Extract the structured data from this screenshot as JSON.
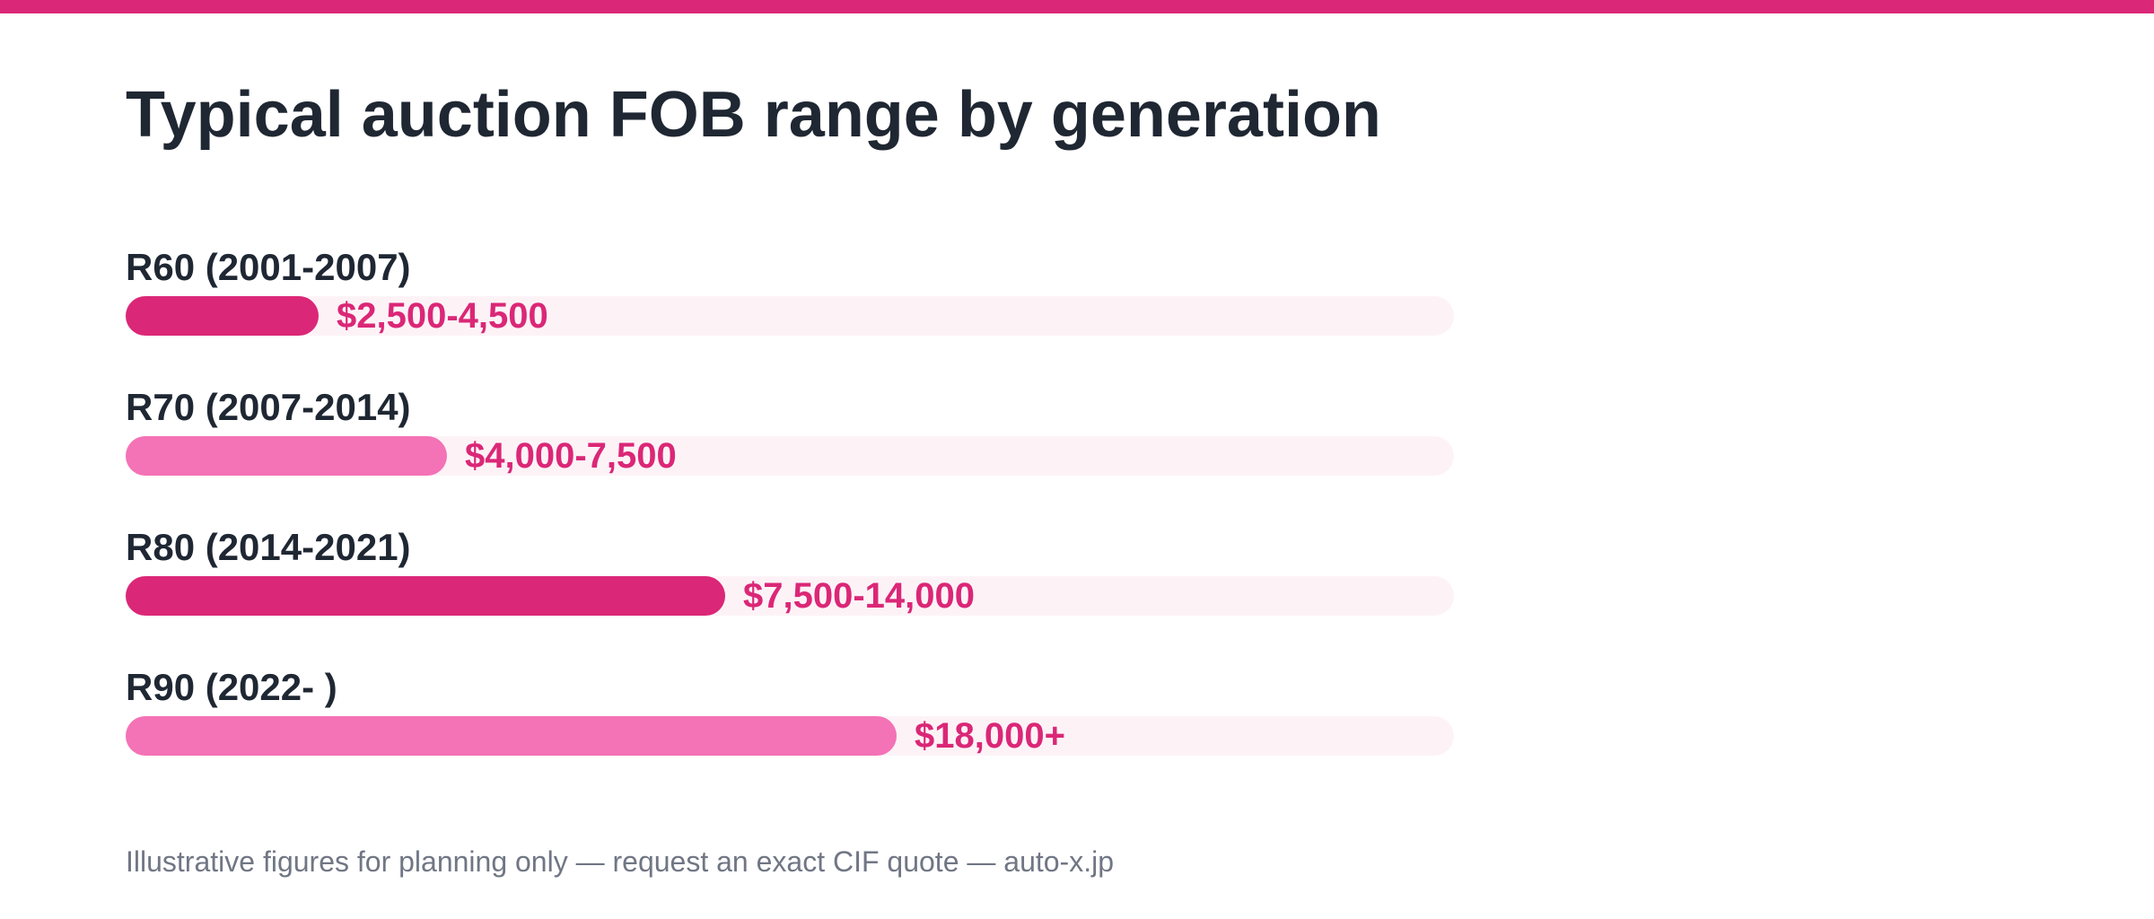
{
  "theme": {
    "accent": "#db2777",
    "accent_light": "#f472b6",
    "track": "#fdf3f7",
    "text": "#1f2733",
    "muted": "#707684"
  },
  "chart_data": {
    "type": "bar",
    "orientation": "horizontal",
    "title": "Typical auction FOB range by generation",
    "categories": [
      "R60 (2001-2007)",
      "R70 (2007-2014)",
      "R80 (2014-2021)",
      "R90 (2022- )"
    ],
    "values": [
      4500,
      7500,
      14000,
      18000
    ],
    "value_labels": [
      "$2,500-4,500",
      "$4,000-7,500",
      "$7,500-14,000",
      "$18,000+"
    ],
    "bar_colors": [
      "#db2777",
      "#f472b6",
      "#db2777",
      "#f472b6"
    ],
    "xlim": [
      0,
      31000
    ],
    "grid": false,
    "legend": "none"
  },
  "footnote": "Illustrative figures for planning only — request an exact CIF quote — auto-x.jp"
}
